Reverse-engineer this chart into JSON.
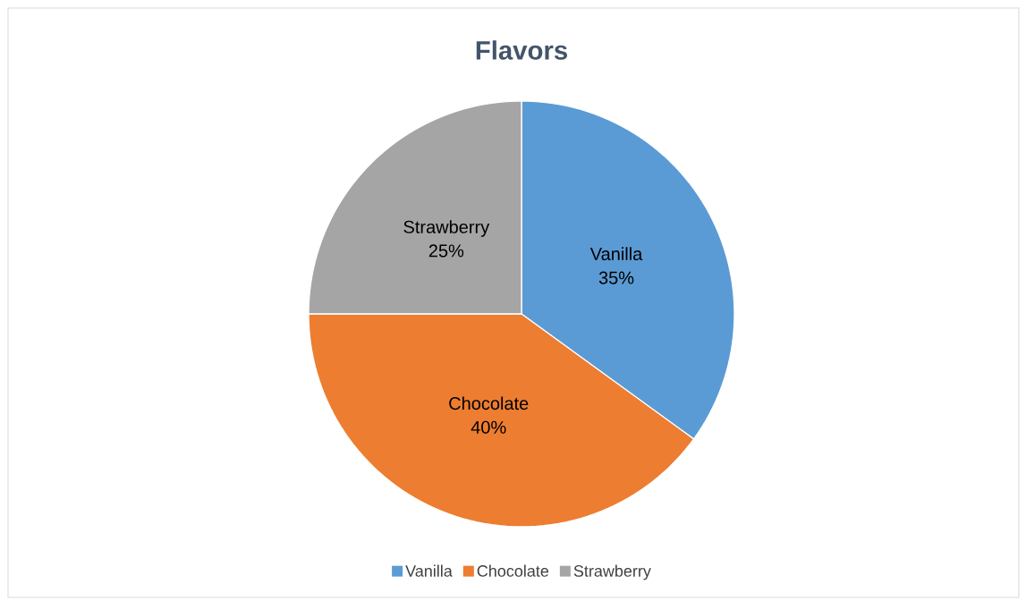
{
  "chart_data": {
    "type": "pie",
    "title": "Flavors",
    "categories": [
      "Vanilla",
      "Chocolate",
      "Strawberry"
    ],
    "values": [
      35,
      40,
      25
    ],
    "value_labels": [
      "35%",
      "40%",
      "25%"
    ],
    "colors": [
      "#5b9bd5",
      "#ed7d31",
      "#a5a5a5"
    ],
    "legend": "bottom"
  }
}
